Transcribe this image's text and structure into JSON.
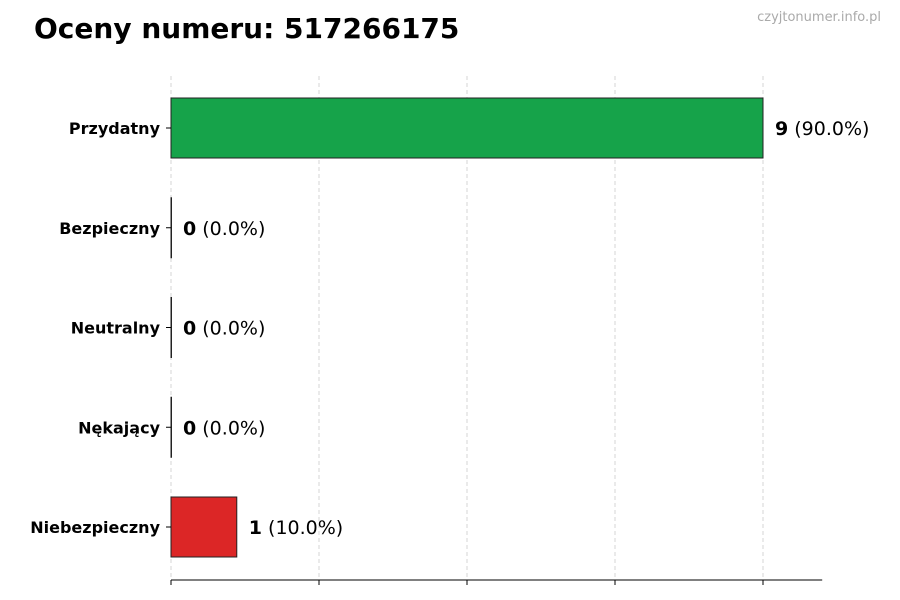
{
  "title": "Oceny numeru: 517266175",
  "watermark": "czyjtonumer.info.pl",
  "chart_data": {
    "type": "bar",
    "orientation": "horizontal",
    "title": "Oceny numeru: 517266175",
    "categories": [
      "Przydatny",
      "Bezpieczny",
      "Neutralny",
      "Nękający",
      "Niebezpieczny"
    ],
    "values": [
      9,
      0,
      0,
      0,
      1
    ],
    "percent_labels": [
      "(90.0%)",
      "(0.0%)",
      "(0.0%)",
      "(0.0%)",
      "(10.0%)"
    ],
    "colors": [
      "#16a34a",
      "#16a34a",
      "#9ca3af",
      "#dc2626",
      "#dc2626"
    ],
    "xlim": [
      0,
      9.9
    ],
    "grid": true,
    "xlabel": "",
    "ylabel": ""
  }
}
